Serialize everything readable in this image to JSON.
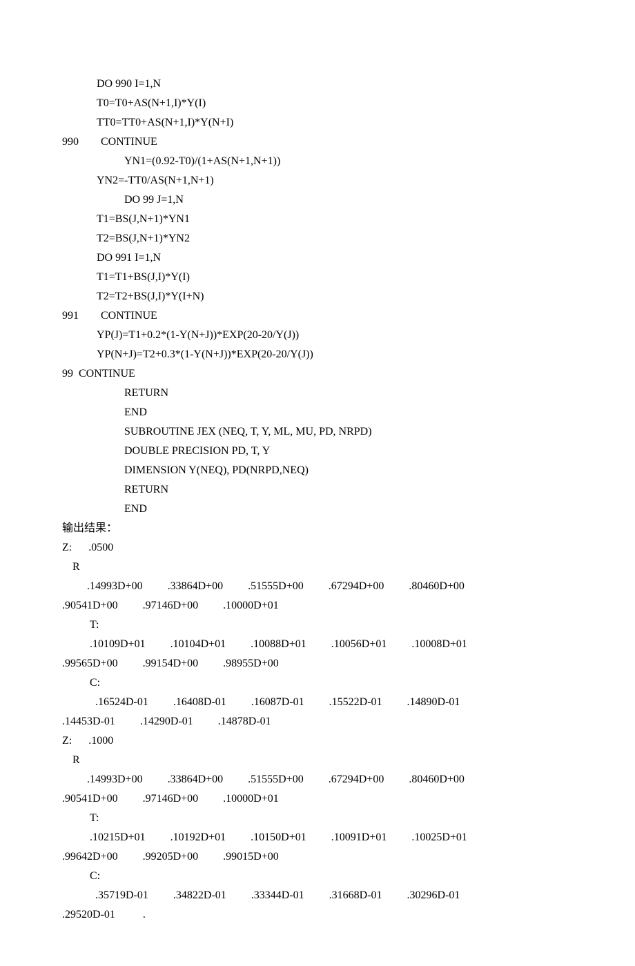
{
  "code": {
    "l1": "DO 990 I=1,N",
    "l2": "T0=T0+AS(N+1,I)*Y(I)",
    "l3": "TT0=TT0+AS(N+1,I)*Y(N+I)",
    "l4": "990        CONTINUE",
    "l5": "YN1=(0.92-T0)/(1+AS(N+1,N+1))",
    "l6": "YN2=-TT0/AS(N+1,N+1)",
    "l7": "DO 99 J=1,N",
    "l8": "T1=BS(J,N+1)*YN1",
    "l9": "T2=BS(J,N+1)*YN2",
    "l10": "DO 991 I=1,N",
    "l11": "T1=T1+BS(J,I)*Y(I)",
    "l12": "T2=T2+BS(J,I)*Y(I+N)",
    "l13": "991        CONTINUE",
    "l14": "YP(J)=T1+0.2*(1-Y(N+J))*EXP(20-20/Y(J))",
    "l15": "YP(N+J)=T2+0.3*(1-Y(N+J))*EXP(20-20/Y(J))",
    "l16": "99  CONTINUE",
    "l17": "RETURN",
    "l18": "END",
    "l19": "SUBROUTINE JEX (NEQ, T, Y, ML, MU, PD, NRPD)",
    "l20": "DOUBLE PRECISION PD, T, Y",
    "l21": "DIMENSION Y(NEQ), PD(NRPD,NEQ)",
    "l22": "RETURN",
    "l23": "END"
  },
  "output": {
    "label": "输出结果：",
    "block1": {
      "z": "Z:      .0500",
      "r_label": "R",
      "r_row1": "         .14993D+00         .33864D+00         .51555D+00         .67294D+00         .80460D+00",
      "r_row2": ".90541D+00         .97146D+00         .10000D+01",
      "t_label": "T:",
      "t_row1": "          .10109D+01         .10104D+01         .10088D+01         .10056D+01         .10008D+01",
      "t_row2": ".99565D+00         .99154D+00         .98955D+00",
      "c_label": "C:",
      "c_row1": "            .16524D-01         .16408D-01         .16087D-01         .15522D-01         .14890D-01",
      "c_row2": ".14453D-01         .14290D-01         .14878D-01"
    },
    "block2": {
      "z": "Z:      .1000",
      "r_label": "R",
      "r_row1": "         .14993D+00         .33864D+00         .51555D+00         .67294D+00         .80460D+00",
      "r_row2": ".90541D+00         .97146D+00         .10000D+01",
      "t_label": "T:",
      "t_row1": "          .10215D+01         .10192D+01         .10150D+01         .10091D+01         .10025D+01",
      "t_row2": ".99642D+00         .99205D+00         .99015D+00",
      "c_label": "C:",
      "c_row1": "            .35719D-01         .34822D-01         .33344D-01         .31668D-01         .30296D-01",
      "c_row2": ".29520D-01          ."
    }
  }
}
